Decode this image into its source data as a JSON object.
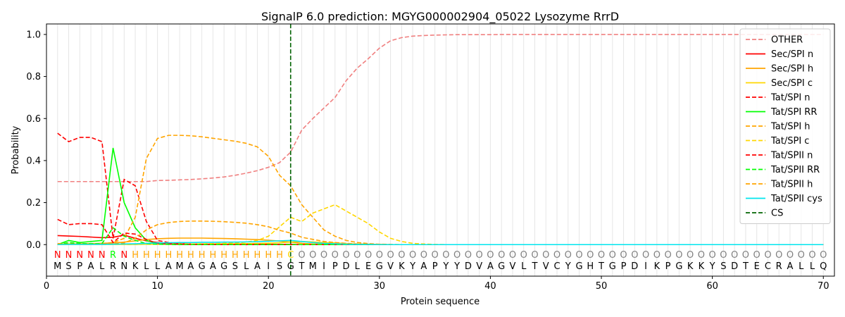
{
  "chart_data": {
    "type": "line",
    "title": "SignalP 6.0 prediction: MGYG000002904_05022 Lysozyme RrrD",
    "xlabel": "Protein sequence",
    "ylabel": "Probability",
    "xlim": [
      0,
      71
    ],
    "ylim": [
      -0.15,
      1.05
    ],
    "xticks": [
      0,
      10,
      20,
      30,
      40,
      50,
      60,
      70
    ],
    "yticks": [
      0.0,
      0.2,
      0.4,
      0.6,
      0.8,
      1.0
    ],
    "sequence": [
      "M",
      "S",
      "P",
      "A",
      "L",
      "R",
      "N",
      "K",
      "L",
      "L",
      "A",
      "M",
      "A",
      "G",
      "A",
      "G",
      "S",
      "L",
      "A",
      "I",
      "S",
      "G",
      "T",
      "M",
      "I",
      "P",
      "D",
      "L",
      "E",
      "G",
      "V",
      "K",
      "Y",
      "A",
      "P",
      "Y",
      "Y",
      "D",
      "V",
      "A",
      "G",
      "V",
      "L",
      "T",
      "V",
      "C",
      "Y",
      "G",
      "H",
      "T",
      "G",
      "P",
      "D",
      "I",
      "K",
      "P",
      "G",
      "K",
      "K",
      "Y",
      "S",
      "D",
      "T",
      "E",
      "C",
      "R",
      "A",
      "L",
      "L",
      "Q"
    ],
    "region_labels": [
      "N",
      "N",
      "N",
      "N",
      "N",
      "R",
      "N",
      "H",
      "H",
      "H",
      "H",
      "H",
      "H",
      "H",
      "H",
      "H",
      "H",
      "H",
      "H",
      "H",
      "H",
      "C",
      "O",
      "O",
      "O",
      "O",
      "O",
      "O",
      "O",
      "O",
      "O",
      "O",
      "O",
      "O",
      "O",
      "O",
      "O",
      "O",
      "O",
      "O",
      "O",
      "O",
      "O",
      "O",
      "O",
      "O",
      "O",
      "O",
      "O",
      "O",
      "O",
      "O",
      "O",
      "O",
      "O",
      "O",
      "O",
      "O",
      "O",
      "O",
      "O",
      "O",
      "O",
      "O",
      "O",
      "O",
      "O",
      "O",
      "O",
      "O"
    ],
    "region_colors": {
      "N": "#ff0000",
      "R": "#00ff00",
      "H": "#ffa500",
      "C": "#ffd700",
      "O": "#808080"
    },
    "cs_position": 22,
    "legend_position": "top-right",
    "grid": "vertical lines at each residue",
    "series": [
      {
        "name": "OTHER",
        "color": "#f08080",
        "dash": true,
        "values": [
          0.3,
          0.3,
          0.3,
          0.3,
          0.3,
          0.3,
          0.3,
          0.3,
          0.3,
          0.305,
          0.306,
          0.308,
          0.31,
          0.313,
          0.317,
          0.322,
          0.33,
          0.34,
          0.352,
          0.368,
          0.39,
          0.44,
          0.545,
          0.6,
          0.65,
          0.7,
          0.78,
          0.84,
          0.885,
          0.935,
          0.97,
          0.985,
          0.992,
          0.995,
          0.997,
          0.998,
          0.999,
          0.999,
          0.999,
          0.999,
          1.0,
          1.0,
          1.0,
          1.0,
          1.0,
          1.0,
          1.0,
          1.0,
          1.0,
          1.0,
          1.0,
          1.0,
          1.0,
          1.0,
          1.0,
          1.0,
          1.0,
          1.0,
          1.0,
          1.0,
          1.0,
          1.0,
          1.0,
          1.0,
          1.0,
          1.0,
          1.0,
          1.0,
          1.0,
          1.0
        ]
      },
      {
        "name": "Sec/SPI n",
        "color": "#ff0000",
        "dash": false,
        "values": [
          0.043,
          0.041,
          0.039,
          0.036,
          0.033,
          0.035,
          0.045,
          0.03,
          0.018,
          0.01,
          0.006,
          0.004,
          0.003,
          0.002,
          0.002,
          0.001,
          0.001,
          0.001,
          0.001,
          0.001,
          0.001,
          0.001,
          0,
          0,
          0,
          0,
          0,
          0,
          0,
          0,
          0,
          0,
          0,
          0,
          0,
          0,
          0,
          0,
          0,
          0,
          0,
          0,
          0,
          0,
          0,
          0,
          0,
          0,
          0,
          0,
          0,
          0,
          0,
          0,
          0,
          0,
          0,
          0,
          0,
          0,
          0,
          0,
          0,
          0,
          0,
          0,
          0,
          0,
          0,
          0
        ]
      },
      {
        "name": "Sec/SPI h",
        "color": "#ffa500",
        "dash": false,
        "values": [
          0.002,
          0.003,
          0.004,
          0.005,
          0.006,
          0.008,
          0.012,
          0.018,
          0.024,
          0.028,
          0.03,
          0.031,
          0.031,
          0.031,
          0.03,
          0.029,
          0.028,
          0.026,
          0.024,
          0.021,
          0.017,
          0.012,
          0.006,
          0.003,
          0.002,
          0.001,
          0.001,
          0,
          0,
          0,
          0,
          0,
          0,
          0,
          0,
          0,
          0,
          0,
          0,
          0,
          0,
          0,
          0,
          0,
          0,
          0,
          0,
          0,
          0,
          0,
          0,
          0,
          0,
          0,
          0,
          0,
          0,
          0,
          0,
          0,
          0,
          0,
          0,
          0,
          0,
          0,
          0,
          0,
          0,
          0
        ]
      },
      {
        "name": "Sec/SPI c",
        "color": "#ffd700",
        "dash": false,
        "values": [
          0.001,
          0.001,
          0.001,
          0.001,
          0.001,
          0.001,
          0.001,
          0.001,
          0.002,
          0.002,
          0.002,
          0.002,
          0.003,
          0.003,
          0.003,
          0.004,
          0.004,
          0.005,
          0.006,
          0.007,
          0.009,
          0.012,
          0.015,
          0.013,
          0.01,
          0.008,
          0.005,
          0.003,
          0.002,
          0.001,
          0,
          0,
          0,
          0,
          0,
          0,
          0,
          0,
          0,
          0,
          0,
          0,
          0,
          0,
          0,
          0,
          0,
          0,
          0,
          0,
          0,
          0,
          0,
          0,
          0,
          0,
          0,
          0,
          0,
          0,
          0,
          0,
          0,
          0,
          0,
          0,
          0,
          0,
          0,
          0
        ]
      },
      {
        "name": "Tat/SPI n",
        "color": "#ff0000",
        "dash": true,
        "values": [
          0.53,
          0.49,
          0.51,
          0.51,
          0.49,
          0.03,
          0.31,
          0.28,
          0.11,
          0.02,
          0.01,
          0.005,
          0.003,
          0.002,
          0.002,
          0.001,
          0.001,
          0.001,
          0.001,
          0.001,
          0.001,
          0.001,
          0,
          0,
          0,
          0,
          0,
          0,
          0,
          0,
          0,
          0,
          0,
          0,
          0,
          0,
          0,
          0,
          0,
          0,
          0,
          0,
          0,
          0,
          0,
          0,
          0,
          0,
          0,
          0,
          0,
          0,
          0,
          0,
          0,
          0,
          0,
          0,
          0,
          0,
          0,
          0,
          0,
          0,
          0,
          0,
          0,
          0,
          0,
          0
        ]
      },
      {
        "name": "Tat/SPI RR",
        "color": "#00ff00",
        "dash": false,
        "values": [
          0.0,
          0.02,
          0.01,
          0.015,
          0.02,
          0.46,
          0.2,
          0.08,
          0.02,
          0.005,
          0.002,
          0.001,
          0.001,
          0,
          0,
          0,
          0,
          0,
          0,
          0,
          0,
          0,
          0,
          0,
          0,
          0,
          0,
          0,
          0,
          0,
          0,
          0,
          0,
          0,
          0,
          0,
          0,
          0,
          0,
          0,
          0,
          0,
          0,
          0,
          0,
          0,
          0,
          0,
          0,
          0,
          0,
          0,
          0,
          0,
          0,
          0,
          0,
          0,
          0,
          0,
          0,
          0,
          0,
          0,
          0,
          0,
          0,
          0,
          0,
          0
        ]
      },
      {
        "name": "Tat/SPI h",
        "color": "#ffa500",
        "dash": true,
        "values": [
          0.005,
          0.005,
          0.005,
          0.005,
          0.005,
          0.01,
          0.03,
          0.13,
          0.41,
          0.505,
          0.52,
          0.52,
          0.518,
          0.513,
          0.506,
          0.499,
          0.492,
          0.482,
          0.465,
          0.42,
          0.33,
          0.28,
          0.19,
          0.13,
          0.07,
          0.04,
          0.02,
          0.01,
          0.005,
          0.002,
          0.001,
          0,
          0,
          0,
          0,
          0,
          0,
          0,
          0,
          0,
          0,
          0,
          0,
          0,
          0,
          0,
          0,
          0,
          0,
          0,
          0,
          0,
          0,
          0,
          0,
          0,
          0,
          0,
          0,
          0,
          0,
          0,
          0,
          0,
          0,
          0,
          0,
          0,
          0,
          0
        ]
      },
      {
        "name": "Tat/SPI c",
        "color": "#ffd700",
        "dash": true,
        "values": [
          0.001,
          0.001,
          0.001,
          0.001,
          0.001,
          0.001,
          0.001,
          0.001,
          0.002,
          0.002,
          0.002,
          0.003,
          0.003,
          0.004,
          0.005,
          0.006,
          0.008,
          0.012,
          0.02,
          0.04,
          0.085,
          0.13,
          0.11,
          0.15,
          0.17,
          0.19,
          0.16,
          0.13,
          0.1,
          0.06,
          0.03,
          0.015,
          0.006,
          0.003,
          0.001,
          0,
          0,
          0,
          0,
          0,
          0,
          0,
          0,
          0,
          0,
          0,
          0,
          0,
          0,
          0,
          0,
          0,
          0,
          0,
          0,
          0,
          0,
          0,
          0,
          0,
          0,
          0,
          0,
          0,
          0,
          0,
          0,
          0,
          0,
          0
        ]
      },
      {
        "name": "Tat/SPII n",
        "color": "#ff0000",
        "dash": true,
        "values": [
          0.12,
          0.095,
          0.1,
          0.1,
          0.095,
          0.01,
          0.055,
          0.05,
          0.025,
          0.005,
          0.003,
          0.002,
          0.001,
          0.001,
          0.001,
          0,
          0,
          0,
          0,
          0,
          0,
          0,
          0,
          0,
          0,
          0,
          0,
          0,
          0,
          0,
          0,
          0,
          0,
          0,
          0,
          0,
          0,
          0,
          0,
          0,
          0,
          0,
          0,
          0,
          0,
          0,
          0,
          0,
          0,
          0,
          0,
          0,
          0,
          0,
          0,
          0,
          0,
          0,
          0,
          0,
          0,
          0,
          0,
          0,
          0,
          0,
          0,
          0,
          0,
          0
        ]
      },
      {
        "name": "Tat/SPII RR",
        "color": "#00ff00",
        "dash": true,
        "values": [
          0.0,
          0.01,
          0.005,
          0.005,
          0.005,
          0.08,
          0.04,
          0.02,
          0.005,
          0.002,
          0.001,
          0,
          0,
          0,
          0,
          0,
          0,
          0,
          0,
          0,
          0,
          0,
          0,
          0,
          0,
          0,
          0,
          0,
          0,
          0,
          0,
          0,
          0,
          0,
          0,
          0,
          0,
          0,
          0,
          0,
          0,
          0,
          0,
          0,
          0,
          0,
          0,
          0,
          0,
          0,
          0,
          0,
          0,
          0,
          0,
          0,
          0,
          0,
          0,
          0,
          0,
          0,
          0,
          0,
          0,
          0,
          0,
          0,
          0,
          0
        ]
      },
      {
        "name": "Tat/SPII h",
        "color": "#ffa500",
        "dash": true,
        "values": [
          0.002,
          0.002,
          0.002,
          0.002,
          0.002,
          0.003,
          0.008,
          0.03,
          0.07,
          0.095,
          0.105,
          0.11,
          0.112,
          0.112,
          0.111,
          0.109,
          0.106,
          0.102,
          0.095,
          0.085,
          0.068,
          0.055,
          0.035,
          0.025,
          0.015,
          0.01,
          0.006,
          0.003,
          0.002,
          0.001,
          0,
          0,
          0,
          0,
          0,
          0,
          0,
          0,
          0,
          0,
          0,
          0,
          0,
          0,
          0,
          0,
          0,
          0,
          0,
          0,
          0,
          0,
          0,
          0,
          0,
          0,
          0,
          0,
          0,
          0,
          0,
          0,
          0,
          0,
          0,
          0,
          0,
          0,
          0,
          0
        ]
      },
      {
        "name": "Tat/SPII cys",
        "color": "#00e5ee",
        "dash": false,
        "values": [
          0.0,
          0.001,
          0.001,
          0.001,
          0.001,
          0.002,
          0.003,
          0.004,
          0.006,
          0.008,
          0.009,
          0.01,
          0.01,
          0.011,
          0.011,
          0.012,
          0.012,
          0.013,
          0.014,
          0.016,
          0.018,
          0.02,
          0.015,
          0.01,
          0.006,
          0.004,
          0.002,
          0.001,
          0.001,
          0,
          0,
          0,
          0,
          0,
          0,
          0,
          0,
          0,
          0,
          0,
          0,
          0,
          0,
          0,
          0,
          0,
          0,
          0,
          0,
          0,
          0,
          0,
          0,
          0,
          0,
          0,
          0,
          0,
          0,
          0,
          0,
          0,
          0,
          0,
          0,
          0,
          0,
          0,
          0,
          0
        ]
      }
    ],
    "cs_legend": {
      "name": "CS",
      "color": "#006400",
      "dash": true
    }
  }
}
